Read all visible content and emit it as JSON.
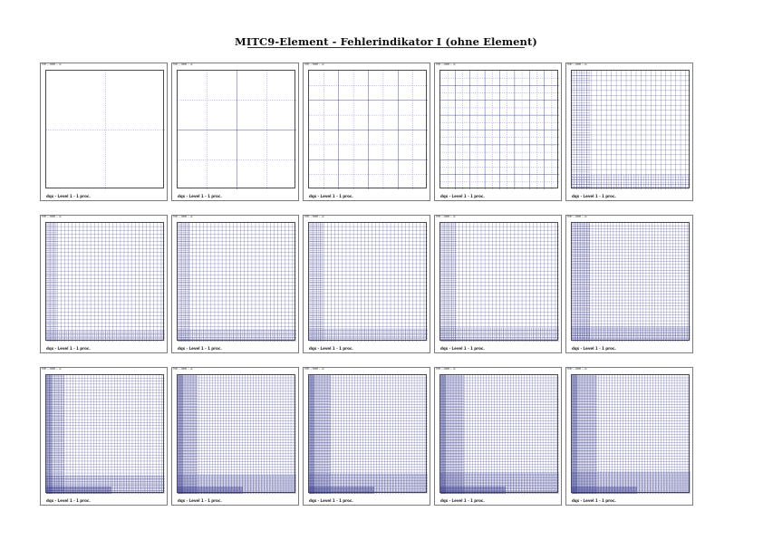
{
  "title": "MITC9-Element - Fehlerindikator I (ohne Element)",
  "colors": {
    "frame": "#7a7a7a",
    "mesh_line": "#2a2f86",
    "dashed_line": "#6f78ff"
  },
  "panel_header": "TMH — BMM — ok",
  "panel_footer": "dqs - Level 1 - 1 proc.",
  "panels": [
    {
      "mesh": "m0"
    },
    {
      "mesh": "m1"
    },
    {
      "mesh": "m2"
    },
    {
      "mesh": "m3"
    },
    {
      "mesh": "m4"
    },
    {
      "mesh": "m5"
    },
    {
      "mesh": "m6"
    },
    {
      "mesh": "m7"
    },
    {
      "mesh": "m8"
    },
    {
      "mesh": "m9"
    },
    {
      "mesh": "m10"
    },
    {
      "mesh": "m11"
    },
    {
      "mesh": "m12"
    },
    {
      "mesh": "m13"
    },
    {
      "mesh": "m14"
    }
  ]
}
